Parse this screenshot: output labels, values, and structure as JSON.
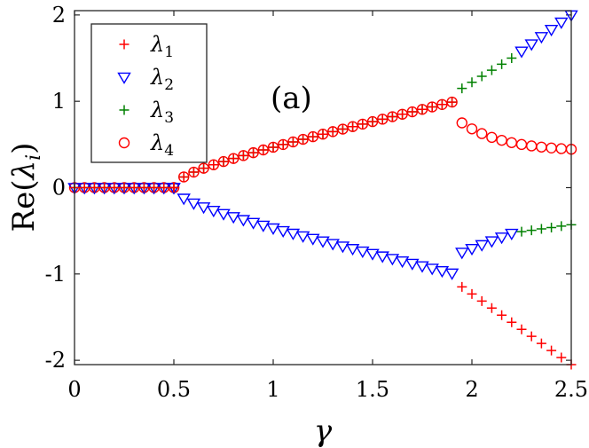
{
  "chart_data": {
    "type": "scatter",
    "annotation": "(a)",
    "xlabel": "γ",
    "ylabel_main": "Re(",
    "ylabel_var": "λ",
    "ylabel_sub": "i",
    "ylabel_close": ")",
    "xlim": [
      0,
      2.5
    ],
    "ylim": [
      -2.05,
      2.05
    ],
    "xticks": [
      0,
      0.5,
      1,
      1.5,
      2,
      2.5
    ],
    "xtick_labels": [
      "0",
      "0.5",
      "1",
      "1.5",
      "2",
      "2.5"
    ],
    "yticks": [
      -2,
      -1,
      0,
      1,
      2
    ],
    "ytick_labels": [
      "-2",
      "-1",
      "0",
      "1",
      "2"
    ],
    "legend_position": "top-left",
    "series": [
      {
        "name": "λ",
        "sub": "1",
        "marker": "plus",
        "color": "#ff0000",
        "segments": [
          {
            "x0": 0.0,
            "x1": 0.5,
            "n": 11,
            "y": "zero"
          },
          {
            "x0": 0.5,
            "x1": 1.9,
            "n": 29,
            "y": "sqrt_pos"
          },
          {
            "x0": 1.95,
            "x1": 2.5,
            "n": 12,
            "y": "lin",
            "y0": -1.15,
            "y1": -2.05
          }
        ]
      },
      {
        "name": "λ",
        "sub": "2",
        "marker": "triangle-down",
        "color": "#0000ff",
        "segments": [
          {
            "x0": 0.0,
            "x1": 0.5,
            "n": 11,
            "y": "zero"
          },
          {
            "x0": 0.5,
            "x1": 1.9,
            "n": 29,
            "y": "sqrt_neg"
          },
          {
            "x0": 1.95,
            "x1": 2.2,
            "n": 6,
            "y": "lin",
            "y0": -0.75,
            "y1": -0.53
          },
          {
            "x0": 2.25,
            "x1": 2.5,
            "n": 6,
            "y": "lin",
            "y0": 1.58,
            "y1": 2.0
          }
        ]
      },
      {
        "name": "λ",
        "sub": "3",
        "marker": "plus",
        "color": "#008000",
        "segments": [
          {
            "x0": 0.0,
            "x1": 0.5,
            "n": 11,
            "y": "zero"
          },
          {
            "x0": 0.5,
            "x1": 1.9,
            "n": 29,
            "y": "sqrt_pos"
          },
          {
            "x0": 1.95,
            "x1": 2.2,
            "n": 6,
            "y": "lin",
            "y0": 1.15,
            "y1": 1.5
          },
          {
            "x0": 2.25,
            "x1": 2.5,
            "n": 6,
            "y": "lin",
            "y0": -0.51,
            "y1": -0.43
          }
        ]
      },
      {
        "name": "λ",
        "sub": "4",
        "marker": "circle",
        "color": "#ff0000",
        "segments": [
          {
            "x0": 0.0,
            "x1": 0.5,
            "n": 11,
            "y": "zero"
          },
          {
            "x0": 0.5,
            "x1": 1.9,
            "n": 29,
            "y": "sqrt_pos"
          },
          {
            "x0": 1.95,
            "x1": 2.5,
            "n": 12,
            "y": "decay",
            "y0": 0.75,
            "y1": 0.42
          }
        ]
      }
    ]
  }
}
